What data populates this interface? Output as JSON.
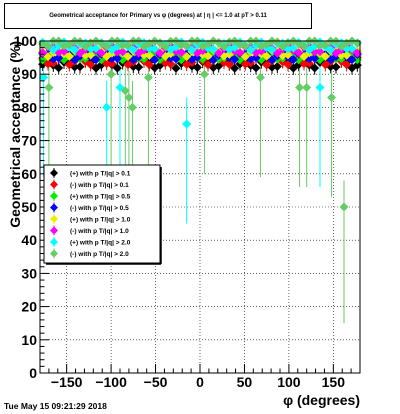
{
  "footer_timestamp": "Tue May 15 09:21:29 2018",
  "chart_data": {
    "type": "scatter",
    "title": "Geometrical acceptance for Primary vs φ (degrees) at | η | <= 1.0 at pT > 0.11",
    "xlabel": "φ (degrees)",
    "ylabel": "Geometrical acceptance (%)",
    "xlim": [
      -180,
      180
    ],
    "ylim": [
      0,
      100
    ],
    "x_ticks": [
      -150,
      -100,
      -50,
      0,
      50,
      100,
      150
    ],
    "y_ticks": [
      0,
      10,
      20,
      30,
      40,
      50,
      60,
      70,
      80,
      90,
      100
    ],
    "grid": true,
    "legend_position": "left-middle",
    "series": [
      {
        "name": "(+) with p T/|q| > 0.1",
        "color": "#000000",
        "marker": "diamond",
        "base": 93.0
      },
      {
        "name": "(-) with p T/|q| > 0.1",
        "color": "#ff0000",
        "marker": "diamond",
        "base": 94.0
      },
      {
        "name": "(+) with p T/|q| > 0.5",
        "color": "#00ee00",
        "marker": "diamond",
        "base": 95.5
      },
      {
        "name": "(-) with p T/|q| > 0.5",
        "color": "#0000ff",
        "marker": "diamond",
        "base": 95.5
      },
      {
        "name": "(+) with p T/|q| > 1.0",
        "color": "#eeee00",
        "marker": "diamond",
        "base": 96.5
      },
      {
        "name": "(-) with p T/|q| > 1.0",
        "color": "#ff00ff",
        "marker": "diamond",
        "base": 97.5
      },
      {
        "name": "(+) with p T/|q| > 2.0",
        "color": "#00ffff",
        "marker": "diamond",
        "base": 98.5,
        "outliers": [
          {
            "x": -176,
            "y": 89
          },
          {
            "x": -105,
            "y": 80
          },
          {
            "x": -90,
            "y": 86
          },
          {
            "x": -15,
            "y": 75
          },
          {
            "x": 135,
            "y": 86
          }
        ]
      },
      {
        "name": "(-) with p T/|q| > 2.0",
        "color": "#66cc66",
        "marker": "diamond",
        "base": 99.5,
        "outliers": [
          {
            "x": -170,
            "y": 86
          },
          {
            "x": -100,
            "y": 90
          },
          {
            "x": -84,
            "y": 85
          },
          {
            "x": -80,
            "y": 83
          },
          {
            "x": -76,
            "y": 80
          },
          {
            "x": -58,
            "y": 89
          },
          {
            "x": 5,
            "y": 90
          },
          {
            "x": 68,
            "y": 89
          },
          {
            "x": 112,
            "y": 86
          },
          {
            "x": 120,
            "y": 86
          },
          {
            "x": 148,
            "y": 83
          },
          {
            "x": 162,
            "y": 50
          }
        ]
      }
    ]
  }
}
